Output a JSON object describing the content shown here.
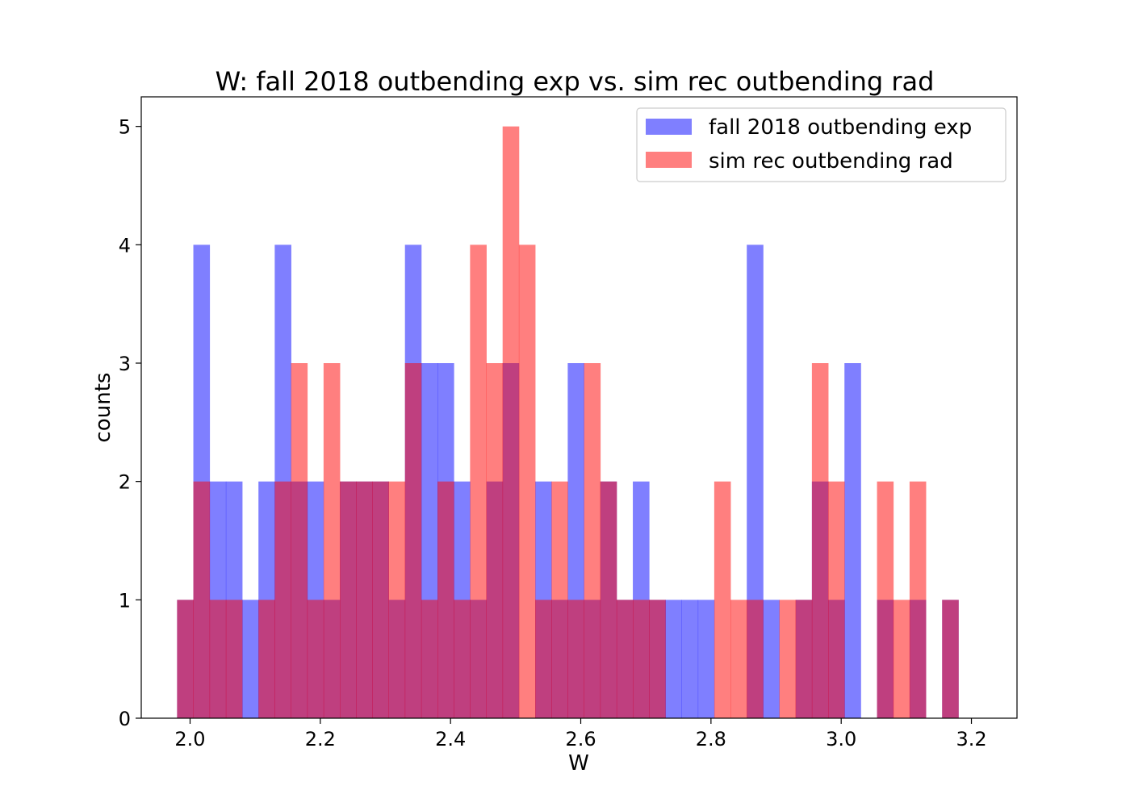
{
  "chart_data": {
    "type": "bar",
    "title": "W: fall 2018 outbending exp  vs. sim rec outbending rad",
    "xlabel": "W",
    "ylabel": "counts",
    "xlim": [
      1.925,
      3.27
    ],
    "ylim": [
      0,
      5.25
    ],
    "xticks": [
      "2.0",
      "2.2",
      "2.4",
      "2.6",
      "2.8",
      "3.0",
      "3.2"
    ],
    "yticks": [
      "0",
      "1",
      "2",
      "3",
      "4",
      "5"
    ],
    "grid": false,
    "legend_position": "upper right",
    "bin_width": 0.025,
    "series": [
      {
        "name": "fall 2018 outbending exp",
        "color": "#0000ff",
        "alpha": 0.5,
        "bins": [
          [
            1.98,
            1
          ],
          [
            2.005,
            4
          ],
          [
            2.03,
            2
          ],
          [
            2.055,
            2
          ],
          [
            2.08,
            1
          ],
          [
            2.105,
            2
          ],
          [
            2.13,
            4
          ],
          [
            2.155,
            2
          ],
          [
            2.18,
            2
          ],
          [
            2.205,
            1
          ],
          [
            2.23,
            2
          ],
          [
            2.255,
            2
          ],
          [
            2.28,
            2
          ],
          [
            2.305,
            1
          ],
          [
            2.33,
            4
          ],
          [
            2.355,
            3
          ],
          [
            2.38,
            3
          ],
          [
            2.405,
            2
          ],
          [
            2.43,
            1
          ],
          [
            2.455,
            2
          ],
          [
            2.48,
            3
          ],
          [
            2.505,
            0
          ],
          [
            2.53,
            2
          ],
          [
            2.555,
            1
          ],
          [
            2.58,
            3
          ],
          [
            2.605,
            1
          ],
          [
            2.63,
            2
          ],
          [
            2.655,
            1
          ],
          [
            2.68,
            2
          ],
          [
            2.705,
            1
          ],
          [
            2.73,
            1
          ],
          [
            2.755,
            1
          ],
          [
            2.78,
            1
          ],
          [
            2.855,
            4
          ],
          [
            2.88,
            1
          ],
          [
            2.93,
            1
          ],
          [
            2.955,
            2
          ],
          [
            2.98,
            1
          ],
          [
            3.005,
            3
          ],
          [
            3.055,
            1
          ],
          [
            3.105,
            1
          ],
          [
            3.155,
            1
          ]
        ]
      },
      {
        "name": "sim rec outbending rad",
        "color": "#ff0000",
        "alpha": 0.5,
        "bins": [
          [
            1.98,
            1
          ],
          [
            2.005,
            2
          ],
          [
            2.03,
            1
          ],
          [
            2.055,
            1
          ],
          [
            2.105,
            1
          ],
          [
            2.13,
            2
          ],
          [
            2.155,
            3
          ],
          [
            2.18,
            1
          ],
          [
            2.205,
            3
          ],
          [
            2.23,
            2
          ],
          [
            2.255,
            2
          ],
          [
            2.28,
            2
          ],
          [
            2.305,
            2
          ],
          [
            2.33,
            3
          ],
          [
            2.355,
            1
          ],
          [
            2.38,
            2
          ],
          [
            2.405,
            1
          ],
          [
            2.43,
            4
          ],
          [
            2.455,
            3
          ],
          [
            2.48,
            5
          ],
          [
            2.505,
            4
          ],
          [
            2.53,
            1
          ],
          [
            2.555,
            2
          ],
          [
            2.58,
            1
          ],
          [
            2.605,
            3
          ],
          [
            2.63,
            2
          ],
          [
            2.655,
            1
          ],
          [
            2.68,
            1
          ],
          [
            2.705,
            1
          ],
          [
            2.805,
            2
          ],
          [
            2.83,
            1
          ],
          [
            2.855,
            1
          ],
          [
            2.905,
            1
          ],
          [
            2.93,
            1
          ],
          [
            2.955,
            3
          ],
          [
            2.98,
            2
          ],
          [
            3.055,
            2
          ],
          [
            3.08,
            1
          ],
          [
            3.105,
            2
          ],
          [
            3.155,
            1
          ]
        ]
      }
    ]
  }
}
